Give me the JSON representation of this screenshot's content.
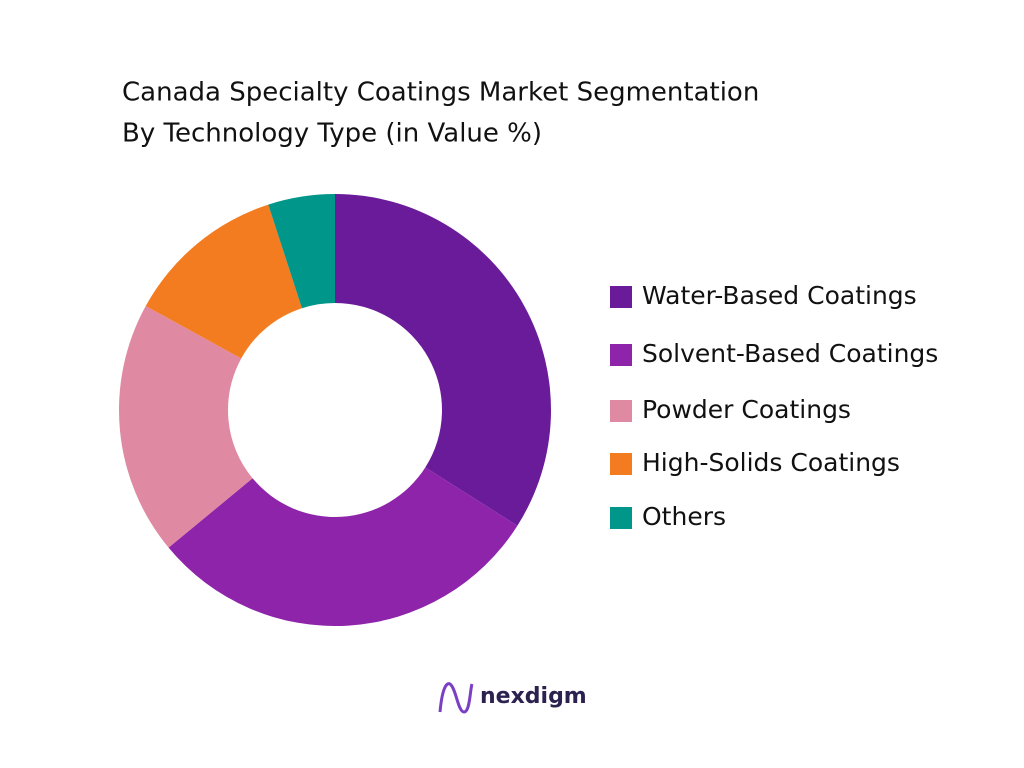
{
  "chart_data": {
    "type": "donut",
    "title": [
      "Canada Specialty Coatings Market Segmentation",
      "By Technology Type (in Value %)"
    ],
    "categories": [
      "Water-Based Coatings",
      "Solvent-Based Coatings",
      "Powder Coatings",
      "High-Solids Coatings",
      "Others"
    ],
    "values": [
      34,
      30,
      19,
      12,
      5
    ],
    "colors": [
      "#6a1b9a",
      "#8e24aa",
      "#df8aa2",
      "#f47c20",
      "#00968a"
    ],
    "legend": "right",
    "brand": "nexdigm"
  }
}
